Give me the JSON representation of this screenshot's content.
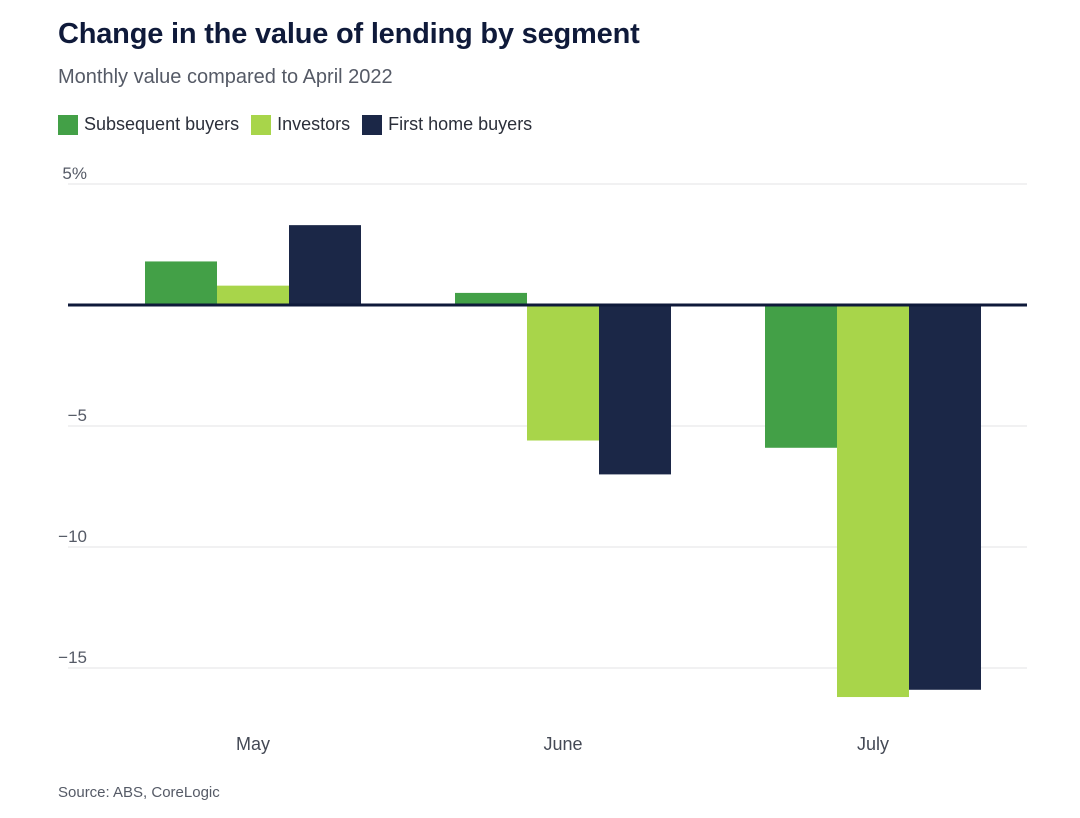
{
  "chart_data": {
    "type": "bar",
    "title": "Change in the value of lending by segment",
    "subtitle": "Monthly value compared to April 2022",
    "categories": [
      "May",
      "June",
      "July"
    ],
    "series": [
      {
        "name": "Subsequent buyers",
        "color": "#43a047",
        "values": [
          1.8,
          0.5,
          -5.9
        ]
      },
      {
        "name": "Investors",
        "color": "#a8d54a",
        "values": [
          0.8,
          -5.6,
          -16.2
        ]
      },
      {
        "name": "First home buyers",
        "color": "#1b2747",
        "values": [
          3.3,
          -7.0,
          -15.9
        ]
      }
    ],
    "yticks": [
      {
        "value": 5,
        "label": "5%"
      },
      {
        "value": 0,
        "label": ""
      },
      {
        "value": -5,
        "label": "−5"
      },
      {
        "value": -10,
        "label": "−10"
      },
      {
        "value": -15,
        "label": "−15"
      }
    ],
    "ylim": [
      -17,
      5
    ],
    "xlabel": "",
    "ylabel": "",
    "grid": true,
    "legend_position": "top-left",
    "source": "Source: ABS, CoreLogic"
  }
}
